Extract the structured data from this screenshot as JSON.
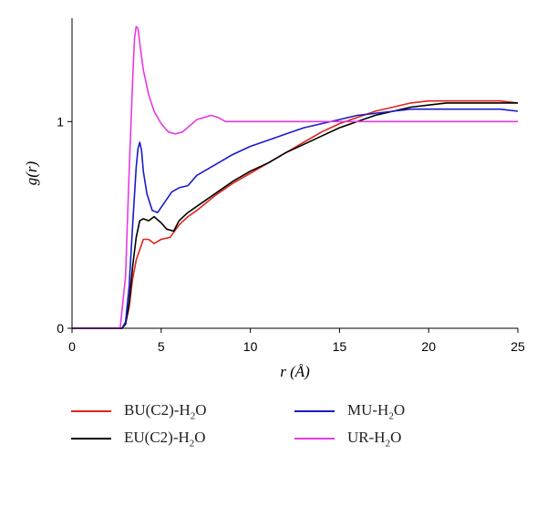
{
  "chart_data": {
    "type": "line",
    "xlabel": "r (Å)",
    "ylabel": "g(r)",
    "xlim": [
      0,
      25
    ],
    "ylim": [
      0,
      1.5
    ],
    "xticks": [
      0,
      5,
      10,
      15,
      20,
      25
    ],
    "yticks": [
      0,
      1
    ],
    "grid": false,
    "legend_position": "bottom",
    "series": [
      {
        "name": "BU(C2)-H2O",
        "name_main": "BU(C2)-H",
        "name_sub": "2",
        "name_tail": "O",
        "color": "#e0241a",
        "x": [
          0,
          2.8,
          3.0,
          3.2,
          3.4,
          3.6,
          3.8,
          4.0,
          4.3,
          4.6,
          5.0,
          5.5,
          6.0,
          6.5,
          7.0,
          8.0,
          9.0,
          10.0,
          11.0,
          12.0,
          13.0,
          14.0,
          15.0,
          16.0,
          17.0,
          18.0,
          19.0,
          20.0,
          21.0,
          22.0,
          23.0,
          24.0,
          25.0
        ],
        "y": [
          0,
          0,
          0.02,
          0.1,
          0.24,
          0.33,
          0.38,
          0.43,
          0.43,
          0.41,
          0.43,
          0.44,
          0.5,
          0.54,
          0.57,
          0.64,
          0.7,
          0.75,
          0.8,
          0.85,
          0.9,
          0.95,
          0.99,
          1.02,
          1.05,
          1.07,
          1.09,
          1.1,
          1.1,
          1.1,
          1.1,
          1.1,
          1.09
        ]
      },
      {
        "name": "EU(C2)-H2O",
        "name_main": "EU(C2)-H",
        "name_sub": "2",
        "name_tail": "O",
        "color": "#000000",
        "x": [
          0,
          2.8,
          3.0,
          3.2,
          3.4,
          3.6,
          3.8,
          4.0,
          4.3,
          4.6,
          5.0,
          5.3,
          5.7,
          6.0,
          6.5,
          7.0,
          8.0,
          9.0,
          10.0,
          11.0,
          12.0,
          13.0,
          14.0,
          15.0,
          16.0,
          17.0,
          18.0,
          19.0,
          20.0,
          21.0,
          22.0,
          23.0,
          24.0,
          25.0
        ],
        "y": [
          0,
          0,
          0.02,
          0.12,
          0.3,
          0.44,
          0.52,
          0.53,
          0.52,
          0.54,
          0.51,
          0.48,
          0.47,
          0.52,
          0.56,
          0.59,
          0.65,
          0.71,
          0.76,
          0.8,
          0.85,
          0.89,
          0.93,
          0.97,
          1.0,
          1.03,
          1.05,
          1.07,
          1.08,
          1.09,
          1.09,
          1.09,
          1.09,
          1.09
        ]
      },
      {
        "name": "MU-H2O",
        "name_main": "MU-H",
        "name_sub": "2",
        "name_tail": "O",
        "color": "#1a1ac8",
        "x": [
          0,
          2.8,
          3.0,
          3.2,
          3.4,
          3.6,
          3.7,
          3.8,
          3.9,
          4.0,
          4.2,
          4.5,
          4.8,
          5.2,
          5.6,
          6.0,
          6.5,
          7.0,
          8.0,
          9.0,
          10.0,
          11.0,
          12.0,
          13.0,
          14.0,
          15.0,
          16.0,
          17.0,
          18.0,
          19.0,
          20.0,
          21.0,
          22.0,
          23.0,
          24.0,
          25.0
        ],
        "y": [
          0,
          0,
          0.03,
          0.2,
          0.5,
          0.78,
          0.87,
          0.9,
          0.86,
          0.76,
          0.65,
          0.57,
          0.56,
          0.61,
          0.66,
          0.68,
          0.69,
          0.74,
          0.79,
          0.84,
          0.88,
          0.91,
          0.94,
          0.97,
          0.99,
          1.01,
          1.03,
          1.04,
          1.05,
          1.06,
          1.06,
          1.06,
          1.06,
          1.06,
          1.06,
          1.05
        ]
      },
      {
        "name": "UR-H2O",
        "name_main": "UR-H",
        "name_sub": "2",
        "name_tail": "O",
        "color": "#e83ae0",
        "x": [
          0,
          2.7,
          3.0,
          3.2,
          3.4,
          3.5,
          3.6,
          3.7,
          3.8,
          4.0,
          4.3,
          4.6,
          5.0,
          5.4,
          5.8,
          6.2,
          6.6,
          7.0,
          7.4,
          7.8,
          8.2,
          8.6,
          9.0,
          9.5,
          10.0,
          11.0,
          12.0,
          13.0,
          14.0,
          15.0,
          16.0,
          18.0,
          20.0,
          22.0,
          25.0
        ],
        "y": [
          0,
          0,
          0.25,
          0.75,
          1.2,
          1.4,
          1.46,
          1.45,
          1.38,
          1.25,
          1.13,
          1.05,
          0.99,
          0.95,
          0.94,
          0.95,
          0.98,
          1.01,
          1.02,
          1.03,
          1.02,
          1.0,
          1.0,
          1.0,
          1.0,
          1.0,
          1.0,
          1.0,
          1.0,
          1.0,
          1.0,
          1.0,
          1.0,
          1.0,
          1.0
        ]
      }
    ]
  }
}
